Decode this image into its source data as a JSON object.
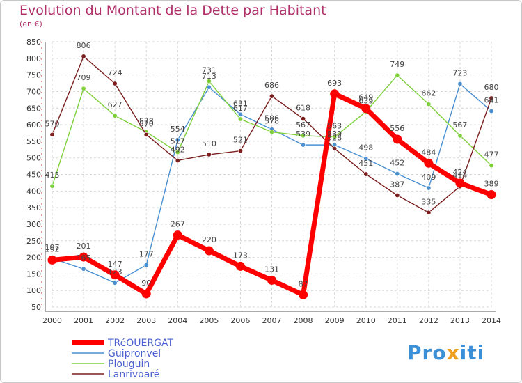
{
  "chart_data": {
    "type": "line",
    "title": "Evolution du Montant de la Dette par Habitant",
    "subtitle": "(en €)",
    "xlabel": "",
    "ylabel": "",
    "x": [
      "2000",
      "2001",
      "2002",
      "2003",
      "2004",
      "2005",
      "2006",
      "2007",
      "2008",
      "2009",
      "2010",
      "2011",
      "2012",
      "2013",
      "2014"
    ],
    "ylim": [
      50,
      850
    ],
    "yticks": [
      50,
      100,
      150,
      200,
      250,
      300,
      350,
      400,
      450,
      500,
      550,
      600,
      650,
      700,
      750,
      800,
      850
    ],
    "grid": true,
    "legend_position": "bottom-left",
    "series": [
      {
        "name": "TRéOUERGAT",
        "color": "#ff0000",
        "values": [
          192,
          201,
          147,
          90,
          267,
          220,
          173,
          131,
          87,
          693,
          649,
          556,
          484,
          424,
          389
        ]
      },
      {
        "name": "Guipronvel",
        "color": "#4a8fd0",
        "values": [
          197,
          165,
          123,
          177,
          554,
          713,
          631,
          586,
          539,
          539,
          498,
          452,
          409,
          723,
          641
        ]
      },
      {
        "name": "Plouguin",
        "color": "#7ed03a",
        "values": [
          415,
          709,
          627,
          578,
          517,
          731,
          617,
          578,
          567,
          563,
          639,
          749,
          662,
          567,
          477
        ]
      },
      {
        "name": "Lanrivoaré",
        "color": "#7a1e1e",
        "values": [
          570,
          806,
          724,
          570,
          492,
          510,
          521,
          686,
          618,
          528,
          451,
          387,
          335,
          414,
          680
        ]
      }
    ]
  },
  "logo": {
    "p1": "Pro",
    "p2": "x",
    "p3": "iti"
  }
}
